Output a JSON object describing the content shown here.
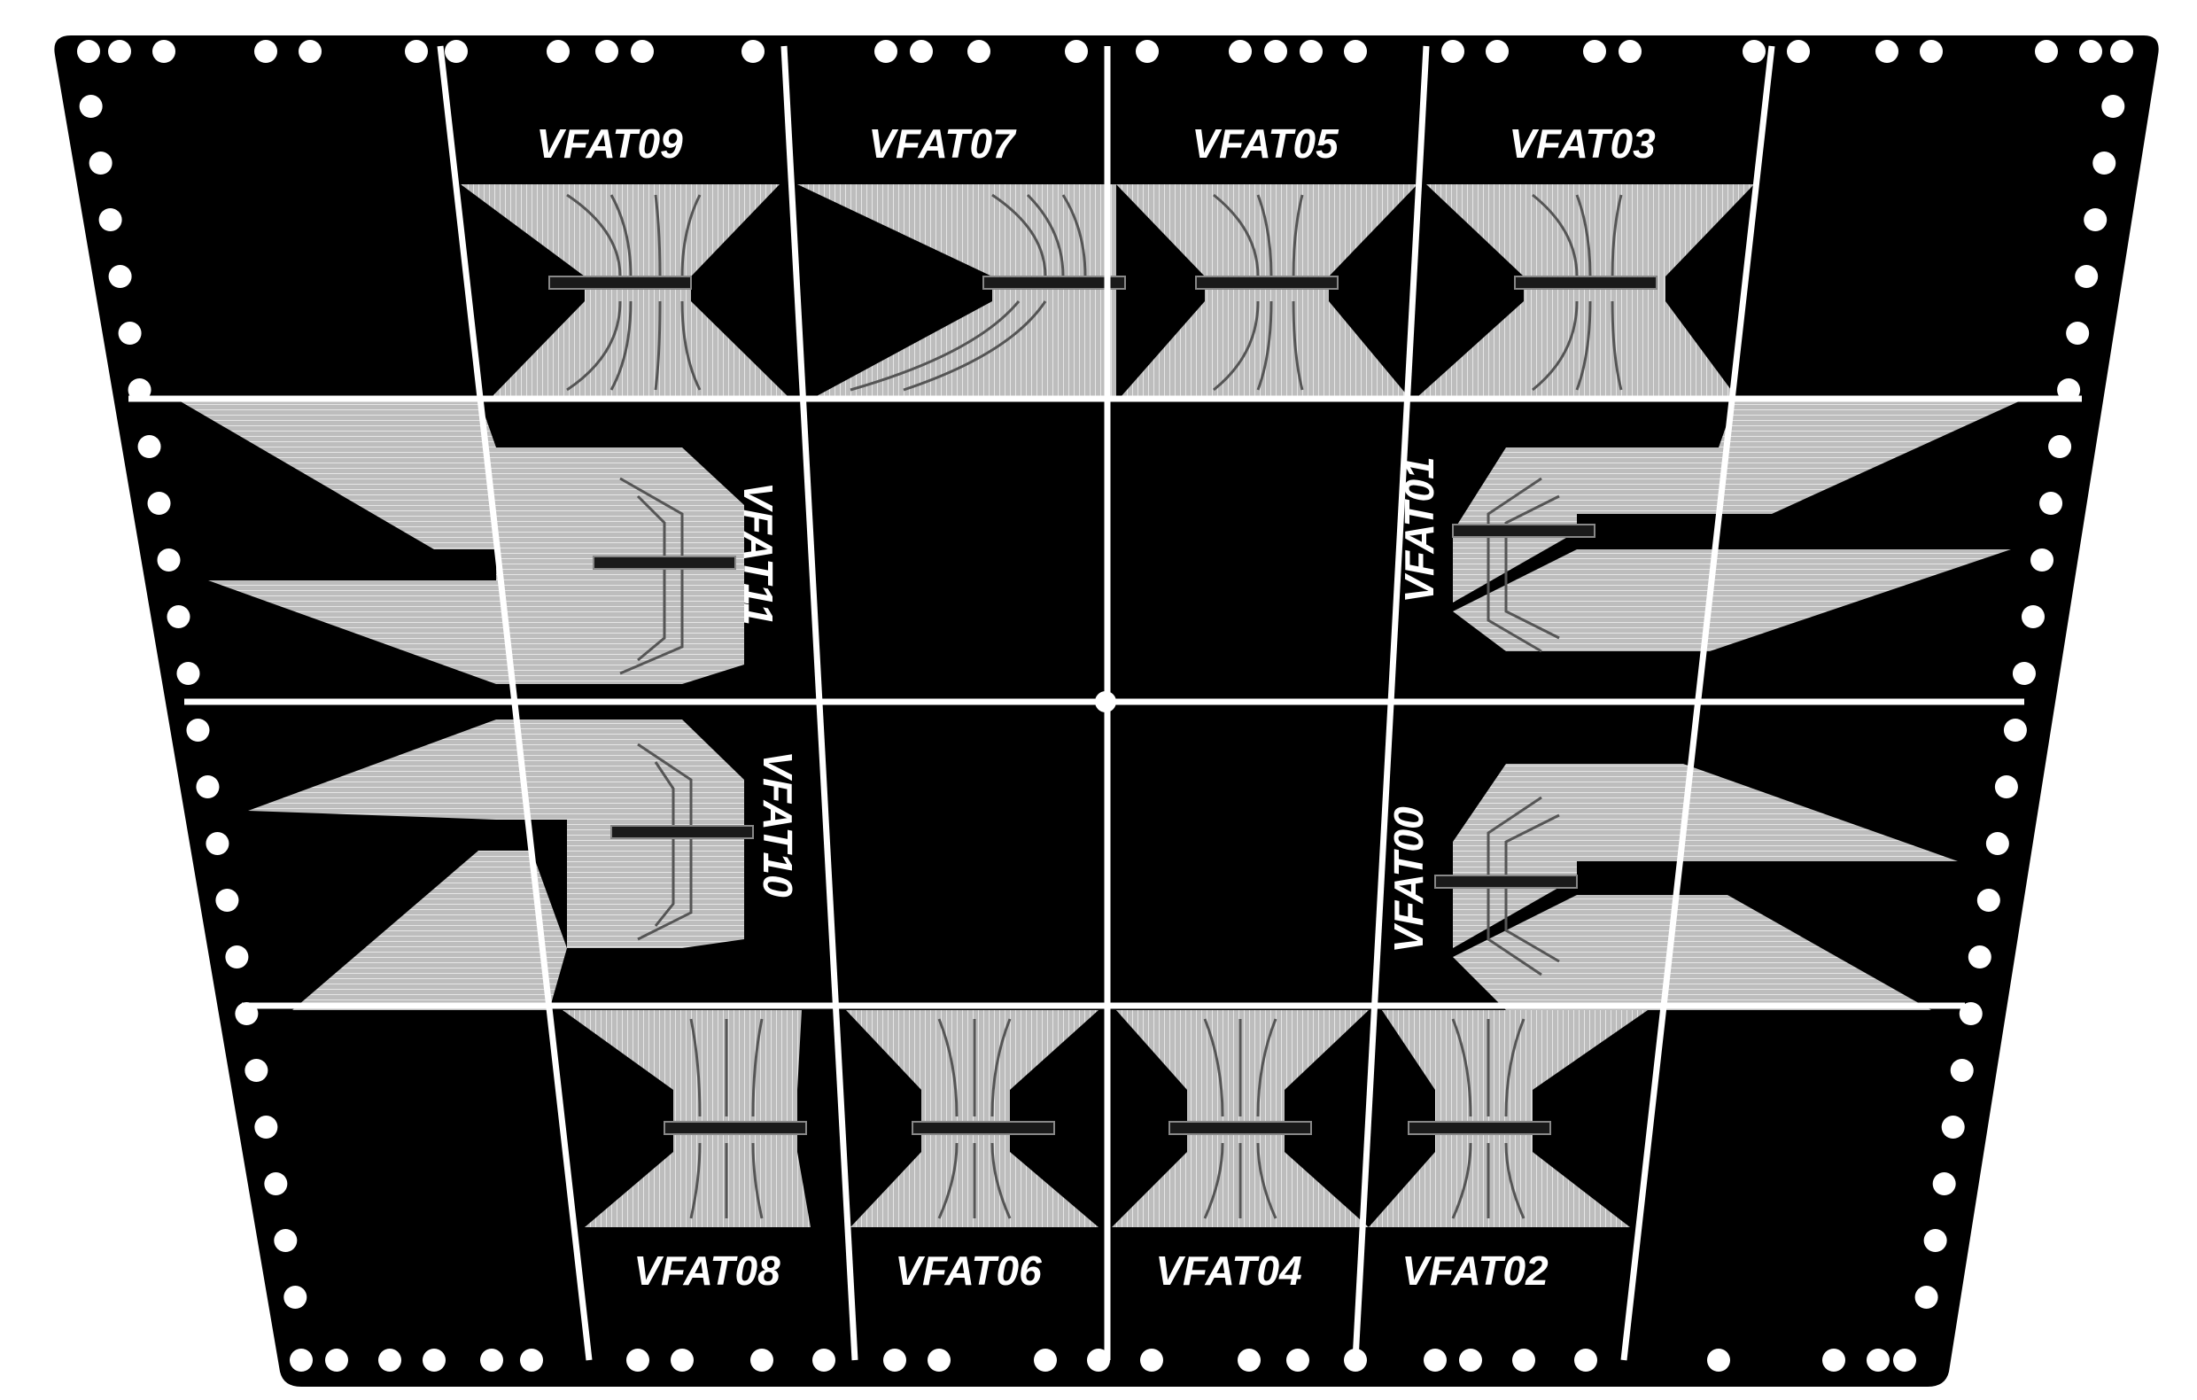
{
  "diagram": {
    "background_color": "#000000",
    "line_color": "#ffffff",
    "trace_color": "#d4d4d4",
    "connectors": {
      "top": [
        "VFAT09",
        "VFAT07",
        "VFAT05",
        "VFAT03"
      ],
      "upper_left": "VFAT11",
      "upper_right": "VFAT01",
      "lower_left": "VFAT10",
      "lower_right": "VFAT00",
      "bottom": [
        "VFAT08",
        "VFAT06",
        "VFAT04",
        "VFAT02"
      ]
    }
  }
}
